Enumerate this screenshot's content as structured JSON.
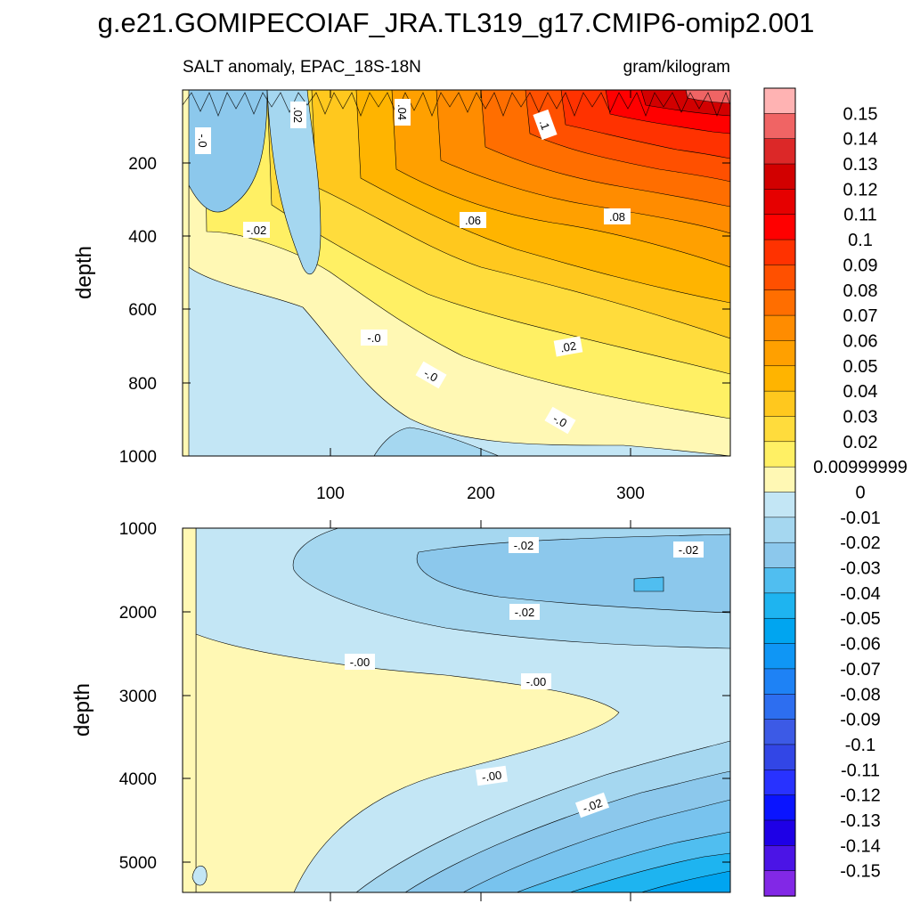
{
  "chart_data": {
    "type": "heatmap",
    "title": "g.e21.GOMIPECOIAF_JRA.TL319_g17.CMIP6-omip2.001",
    "left_subtitle": "SALT anomaly, EPAC_18S-18N",
    "right_subtitle": "gram/kilogram",
    "x_tick_labels": [
      "100",
      "200",
      "300"
    ],
    "xlim": [
      0,
      365
    ],
    "panels": [
      {
        "name": "upper",
        "ylabel": "depth",
        "ylim": [
          0,
          1000
        ],
        "y_tick_labels": [
          "200",
          "400",
          "600",
          "800",
          "1000"
        ],
        "contour_labels": [
          ".02",
          ".04",
          ".06",
          ".08",
          ".1",
          "-.0",
          "-.02",
          "-.0",
          ".02",
          "-.0",
          "-.0"
        ]
      },
      {
        "name": "lower",
        "ylabel": "depth",
        "ylim": [
          1000,
          5400
        ],
        "y_tick_labels": [
          "1000",
          "2000",
          "3000",
          "4000",
          "5000"
        ],
        "contour_labels": [
          "-.02",
          "-.02",
          "-.02",
          "-.00",
          "-.00",
          "-.00",
          "-.02"
        ]
      }
    ],
    "colorbar": {
      "labels": [
        "0.15",
        "0.14",
        "0.13",
        "0.12",
        "0.11",
        "0.1",
        "0.09",
        "0.08",
        "0.07",
        "0.06",
        "0.05",
        "0.04",
        "0.03",
        "0.02",
        "0.00999999",
        "0",
        "-0.01",
        "-0.02",
        "-0.03",
        "-0.04",
        "-0.05",
        "-0.06",
        "-0.07",
        "-0.08",
        "-0.09",
        "-0.1",
        "-0.11",
        "-0.12",
        "-0.13",
        "-0.14",
        "-0.15"
      ],
      "colors": [
        "#ffb3b3",
        "#f06464",
        "#dc2828",
        "#d20000",
        "#e60000",
        "#ff0000",
        "#ff3200",
        "#ff5000",
        "#ff6e00",
        "#ff8c00",
        "#ffa000",
        "#ffb400",
        "#ffc81e",
        "#ffdc3c",
        "#fff064",
        "#fff8b4",
        "#c3e6f5",
        "#a5d7f0",
        "#8cc8ec",
        "#50bef0",
        "#1eb4f0",
        "#00a5f0",
        "#0f96f5",
        "#1e82f5",
        "#2d6ef0",
        "#3c5ae6",
        "#3246e6",
        "#2832ff",
        "#0a14ff",
        "#1e00e6",
        "#4b14e6",
        "#8228e6"
      ]
    }
  }
}
